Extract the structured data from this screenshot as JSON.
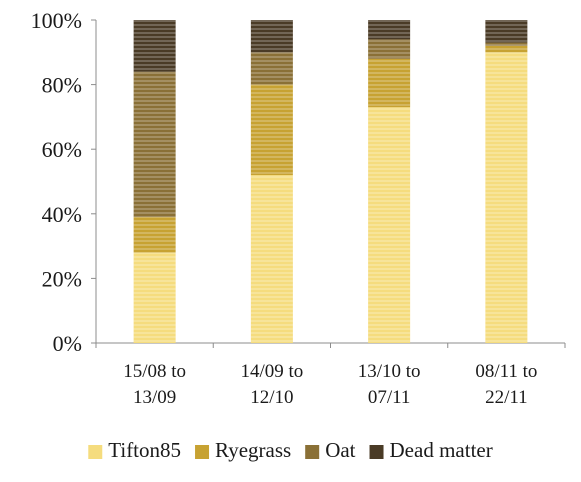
{
  "chart_data": {
    "type": "bar",
    "stacked": true,
    "percent": true,
    "title": "",
    "xlabel": "",
    "ylabel": "",
    "ylim": [
      0,
      100
    ],
    "yticks": [
      "0%",
      "20%",
      "40%",
      "60%",
      "80%",
      "100%"
    ],
    "categories": [
      [
        "15/08 to",
        "13/09"
      ],
      [
        "14/09 to",
        "12/10"
      ],
      [
        "13/10 to",
        "07/11"
      ],
      [
        "08/11 to",
        "22/11"
      ]
    ],
    "series": [
      {
        "name": "Tifton85",
        "color": "#f5dc7e",
        "values": [
          28,
          52,
          73,
          90
        ]
      },
      {
        "name": "Ryegrass",
        "color": "#c7a232",
        "values": [
          11,
          28,
          15,
          2
        ]
      },
      {
        "name": "Oat",
        "color": "#8a7036",
        "values": [
          45,
          10,
          6,
          1
        ]
      },
      {
        "name": "Dead matter",
        "color": "#4a3b26",
        "values": [
          16,
          10,
          6,
          7
        ]
      }
    ],
    "grid": false,
    "legend_position": "bottom"
  }
}
